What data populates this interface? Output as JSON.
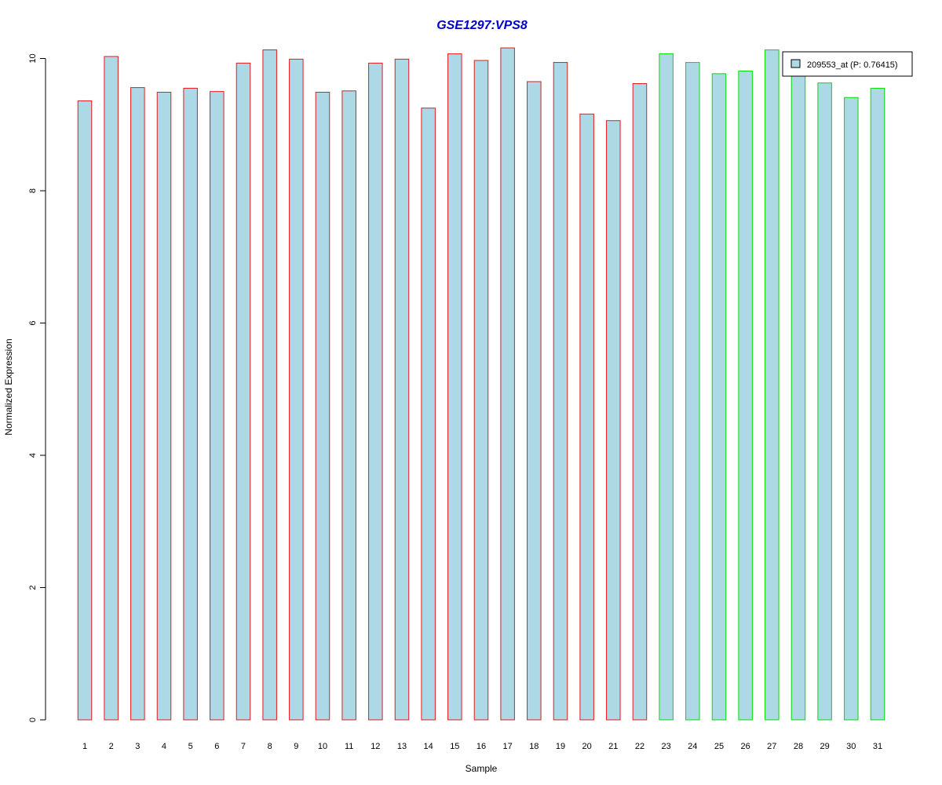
{
  "chart_data": {
    "type": "bar",
    "title": "GSE1297:VPS8",
    "xlabel": "Sample",
    "ylabel": "Normalized Expression",
    "ylim": [
      0,
      10.2
    ],
    "yticks": [
      0,
      2,
      4,
      6,
      8,
      10
    ],
    "categories": [
      "1",
      "2",
      "3",
      "4",
      "5",
      "6",
      "7",
      "8",
      "9",
      "10",
      "11",
      "12",
      "13",
      "14",
      "15",
      "16",
      "17",
      "18",
      "19",
      "20",
      "21",
      "22",
      "23",
      "24",
      "25",
      "26",
      "27",
      "28",
      "29",
      "30",
      "31"
    ],
    "values": [
      9.36,
      10.03,
      9.56,
      9.49,
      9.55,
      9.5,
      9.93,
      10.13,
      9.99,
      9.49,
      9.51,
      9.93,
      9.99,
      9.25,
      10.07,
      9.97,
      10.16,
      9.65,
      9.94,
      9.16,
      9.06,
      9.62,
      10.07,
      9.94,
      9.77,
      9.81,
      10.13,
      9.77,
      9.63,
      9.41,
      9.55
    ],
    "groups": [
      "red",
      "red",
      "red",
      "red",
      "red",
      "red",
      "red",
      "red",
      "red",
      "red",
      "red",
      "red",
      "red",
      "red",
      "red",
      "red",
      "red",
      "red",
      "red",
      "red",
      "red",
      "red",
      "green",
      "green",
      "green",
      "green",
      "green",
      "green",
      "green",
      "green",
      "green"
    ],
    "colors": {
      "fill": "#add8e6",
      "red": "#e41a1c",
      "green": "#00e000",
      "title": "#0000cc"
    },
    "legend": {
      "label": "209553_at (P: 0.76415)",
      "position": "top-right"
    },
    "grid": false
  }
}
